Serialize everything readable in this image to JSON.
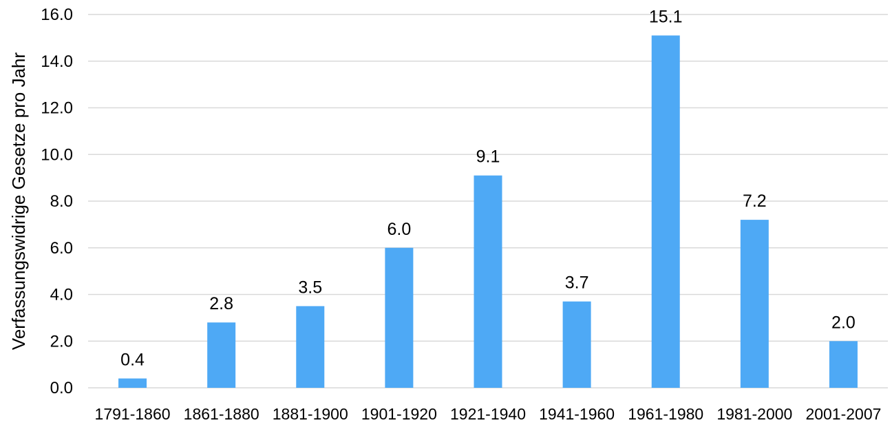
{
  "chart_data": {
    "type": "bar",
    "title": "",
    "xlabel": "",
    "ylabel": "Verfassungswidrige Gesetze pro Jahr",
    "categories": [
      "1791-1860",
      "1861-1880",
      "1881-1900",
      "1901-1920",
      "1921-1940",
      "1941-1960",
      "1961-1980",
      "1981-2000",
      "2001-2007"
    ],
    "values": [
      0.4,
      2.8,
      3.5,
      6.0,
      9.1,
      3.7,
      15.1,
      7.2,
      2.0
    ],
    "value_labels": [
      "0.4",
      "2.8",
      "3.5",
      "6.0",
      "9.1",
      "3.7",
      "15.1",
      "7.2",
      "2.0"
    ],
    "ylim": [
      0,
      16
    ],
    "yticks": [
      "0.0",
      "2.0",
      "4.0",
      "6.0",
      "8.0",
      "10.0",
      "12.0",
      "14.0",
      "16.0"
    ],
    "grid": true,
    "legend": "none",
    "bar_color": "#4ea9f5"
  }
}
